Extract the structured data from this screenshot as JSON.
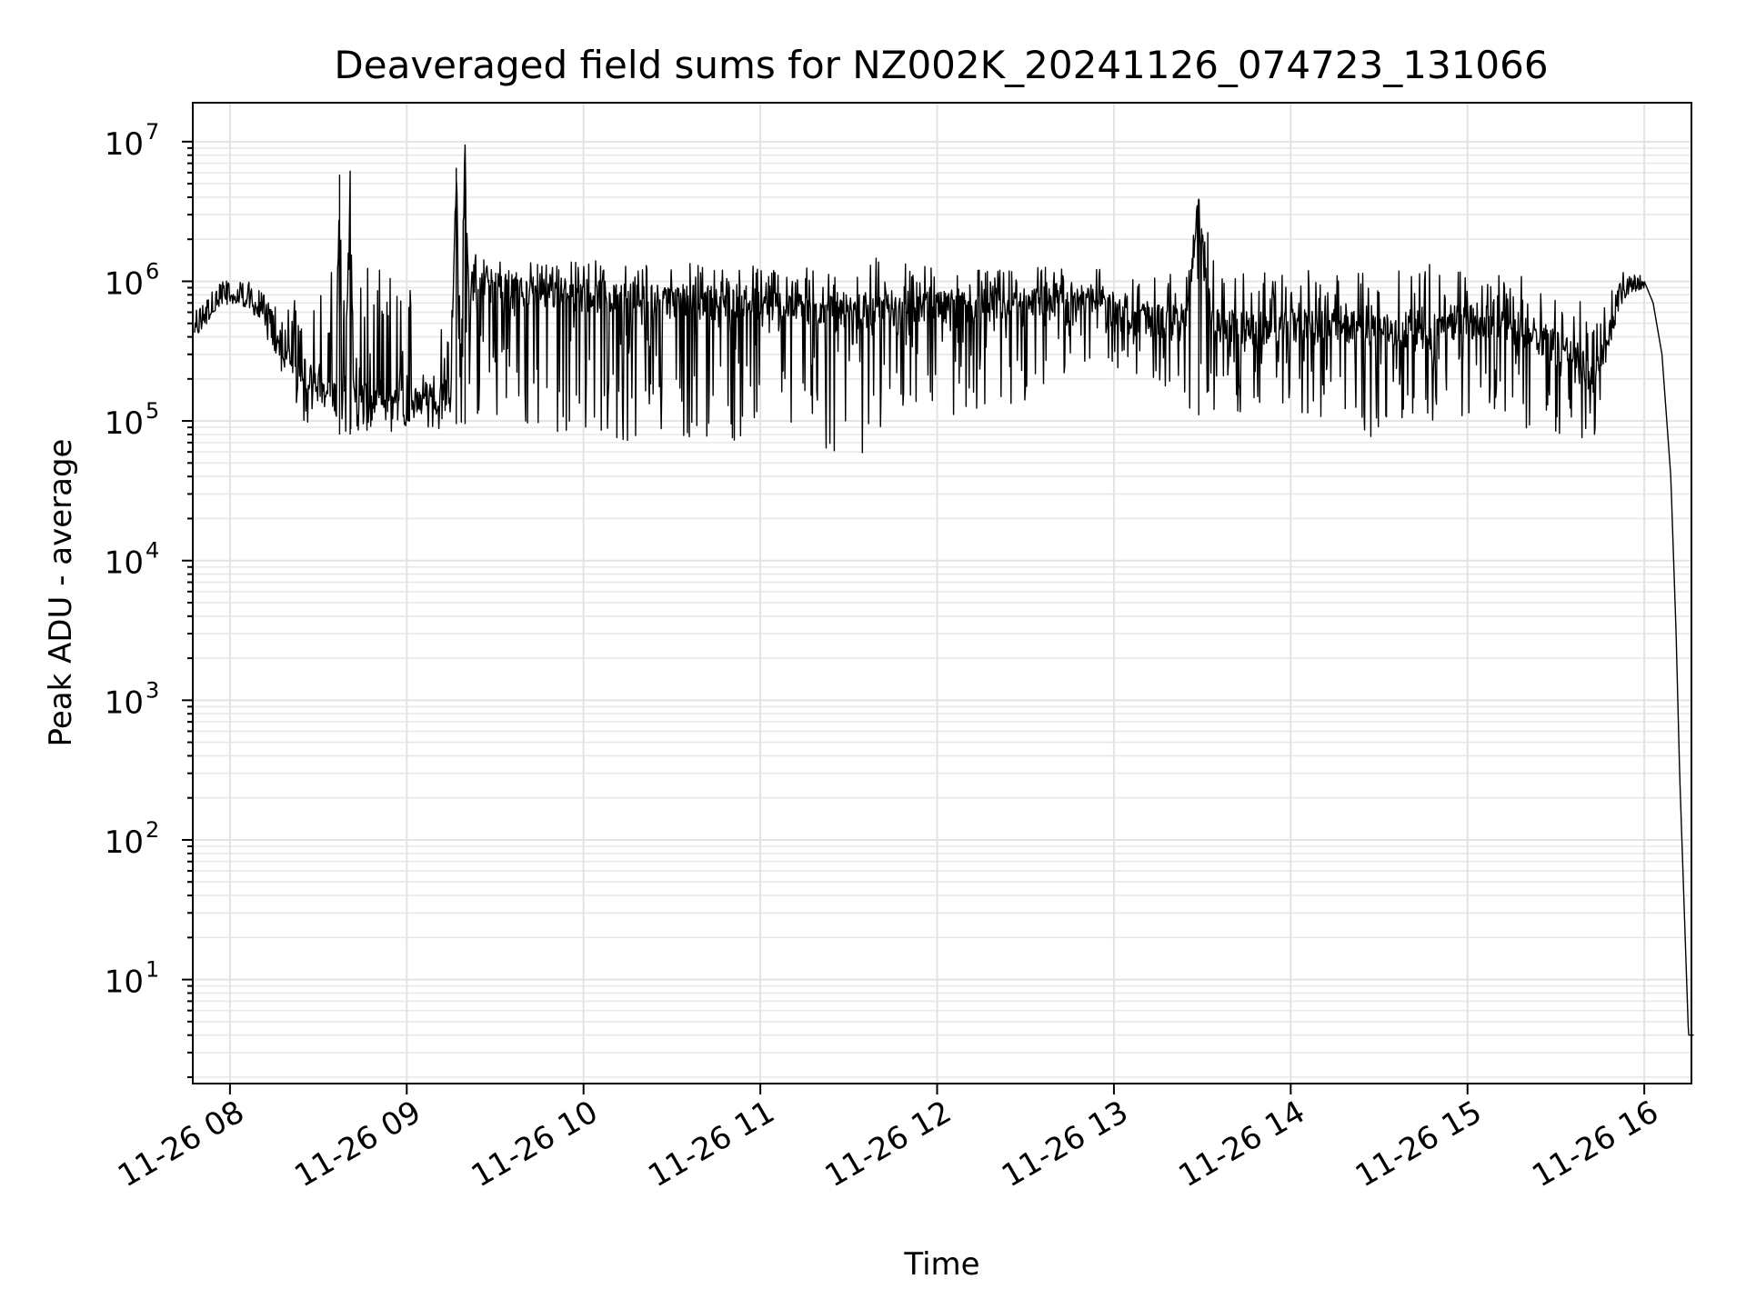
{
  "chart_data": {
    "type": "line",
    "title": "Deaveraged field sums for NZ002K_20241126_074723_131066",
    "xlabel": "Time",
    "ylabel": "Peak ADU - average",
    "yscale": "log",
    "xlim": [
      "2024-11-26 07:47:23",
      "2024-11-26 16:18"
    ],
    "ylim": [
      1.8,
      19000000
    ],
    "grid": true,
    "x_ticks": [
      "11-26 08",
      "11-26 09",
      "11-26 10",
      "11-26 11",
      "11-26 12",
      "11-26 13",
      "11-26 14",
      "11-26 15",
      "11-26 16"
    ],
    "x_tick_values": [
      8,
      9,
      10,
      11,
      12,
      13,
      14,
      15,
      16
    ],
    "y_ticks": [
      {
        "base": "10",
        "exp": "1",
        "value": 10
      },
      {
        "base": "10",
        "exp": "2",
        "value": 100
      },
      {
        "base": "10",
        "exp": "3",
        "value": 1000
      },
      {
        "base": "10",
        "exp": "4",
        "value": 10000
      },
      {
        "base": "10",
        "exp": "5",
        "value": 100000
      },
      {
        "base": "10",
        "exp": "6",
        "value": 1000000
      },
      {
        "base": "10",
        "exp": "7",
        "value": 10000000
      }
    ],
    "x_hours_start": 7.7897,
    "series": [
      {
        "color": "#000000",
        "x_hours": [
          7.8,
          7.85,
          7.9,
          7.95,
          8.0,
          8.05,
          8.1,
          8.15,
          8.2,
          8.25,
          8.3,
          8.35,
          8.4,
          8.45,
          8.5,
          8.55,
          8.6,
          8.62,
          8.65,
          8.68,
          8.7,
          8.75,
          8.8,
          8.85,
          8.9,
          8.95,
          9.0,
          9.05,
          9.1,
          9.15,
          9.2,
          9.25,
          9.28,
          9.3,
          9.33,
          9.35,
          9.4,
          9.45,
          9.5,
          9.6,
          9.7,
          9.8,
          9.9,
          10.0,
          10.1,
          10.2,
          10.3,
          10.4,
          10.5,
          10.6,
          10.7,
          10.8,
          10.9,
          11.0,
          11.1,
          11.2,
          11.3,
          11.4,
          11.5,
          11.6,
          11.7,
          11.8,
          11.9,
          12.0,
          12.1,
          12.2,
          12.3,
          12.4,
          12.5,
          12.6,
          12.7,
          12.8,
          12.9,
          13.0,
          13.1,
          13.2,
          13.3,
          13.4,
          13.48,
          13.55,
          13.6,
          13.7,
          13.8,
          13.9,
          14.0,
          14.1,
          14.2,
          14.3,
          14.4,
          14.5,
          14.6,
          14.7,
          14.8,
          14.9,
          15.0,
          15.1,
          15.2,
          15.3,
          15.4,
          15.5,
          15.6,
          15.7,
          15.75,
          15.8,
          15.85,
          15.9,
          15.95,
          16.0,
          16.05,
          16.1,
          16.15,
          16.18,
          16.2,
          16.25,
          16.28
        ],
        "y": [
          500000,
          550000,
          650000,
          750000,
          800000,
          780000,
          760000,
          700000,
          600000,
          450000,
          350000,
          300000,
          250000,
          200000,
          180000,
          160000,
          150000,
          5800000,
          150000,
          6200000,
          140000,
          150000,
          140000,
          150000,
          140000,
          150000,
          130000,
          140000,
          150000,
          140000,
          160000,
          150000,
          6500000,
          150000,
          9500000,
          900000,
          1000000,
          950000,
          900000,
          850000,
          800000,
          850000,
          820000,
          800000,
          780000,
          750000,
          760000,
          740000,
          720000,
          700000,
          710000,
          700000,
          690000,
          680000,
          660000,
          650000,
          640000,
          630000,
          620000,
          600000,
          620000,
          640000,
          650000,
          630000,
          620000,
          640000,
          650000,
          660000,
          680000,
          700000,
          750000,
          800000,
          750000,
          600000,
          550000,
          520000,
          500000,
          480000,
          3900000,
          500000,
          480000,
          470000,
          460000,
          450000,
          460000,
          470000,
          480000,
          470000,
          460000,
          450000,
          440000,
          460000,
          480000,
          500000,
          510000,
          500000,
          480000,
          450000,
          400000,
          350000,
          300000,
          200000,
          250000,
          400000,
          700000,
          900000,
          950000,
          1000000,
          700000,
          300000,
          40000,
          3000,
          300,
          4,
          4
        ],
        "y_low": [
          400000,
          420000,
          600000,
          650000,
          700000,
          680000,
          650000,
          550000,
          400000,
          300000,
          200000,
          150000,
          100000,
          90000,
          85000,
          80000,
          80000,
          80000,
          80000,
          80000,
          80000,
          90000,
          80000,
          85000,
          80000,
          85000,
          80000,
          85000,
          90000,
          85000,
          90000,
          95000,
          95000,
          95000,
          95000,
          100000,
          100000,
          95000,
          100000,
          90000,
          80000,
          80000,
          85000,
          90000,
          70000,
          65000,
          75000,
          70000,
          80000,
          75000,
          70000,
          65000,
          75000,
          60000,
          70000,
          65000,
          70000,
          55000,
          70000,
          55000,
          90000,
          120000,
          130000,
          120000,
          110000,
          100000,
          120000,
          130000,
          130000,
          150000,
          200000,
          250000,
          300000,
          250000,
          200000,
          180000,
          150000,
          130000,
          110000,
          110000,
          100000,
          110000,
          120000,
          110000,
          100000,
          110000,
          100000,
          90000,
          80000,
          75000,
          70000,
          80000,
          90000,
          100000,
          110000,
          100000,
          95000,
          90000,
          85000,
          80000,
          75000,
          70000,
          80000,
          300000,
          600000,
          800000,
          850000,
          900000,
          600000,
          250000,
          30000,
          2500,
          250,
          4,
          4
        ],
        "y_high": [
          600000,
          700000,
          900000,
          1100000,
          1200000,
          1100000,
          1000000,
          900000,
          800000,
          700000,
          800000,
          900000,
          1000000,
          1100000,
          1200000,
          1200000,
          1300000,
          5800000,
          1300000,
          6200000,
          1200000,
          1300000,
          1200000,
          1300000,
          1250000,
          1300000,
          1200000,
          1250000,
          1300000,
          1250000,
          1300000,
          1350000,
          6500000,
          1400000,
          9500000,
          1500000,
          1600000,
          1550000,
          1500000,
          1450000,
          1400000,
          1450000,
          1400000,
          1450000,
          1400000,
          1350000,
          1400000,
          1350000,
          1300000,
          1350000,
          1300000,
          1350000,
          1300000,
          1350000,
          1300000,
          1250000,
          1300000,
          1250000,
          1200000,
          1300000,
          1800000,
          1400000,
          1300000,
          1250000,
          1200000,
          1300000,
          1250000,
          1200000,
          1400000,
          1300000,
          1350000,
          1400000,
          1300000,
          1200000,
          1100000,
          1000000,
          1200000,
          1400000,
          3900000,
          2100000,
          1100000,
          1200000,
          1100000,
          1200000,
          1150000,
          1200000,
          1100000,
          1150000,
          1200000,
          1400000,
          1300000,
          1350000,
          1400000,
          1300000,
          1250000,
          1200000,
          1150000,
          1100000,
          1000000,
          900000,
          800000,
          700000,
          800000,
          900000,
          1100000,
          1200000,
          1100000,
          1100000,
          800000,
          400000,
          50000,
          4000,
          350,
          4,
          4
        ]
      }
    ]
  }
}
